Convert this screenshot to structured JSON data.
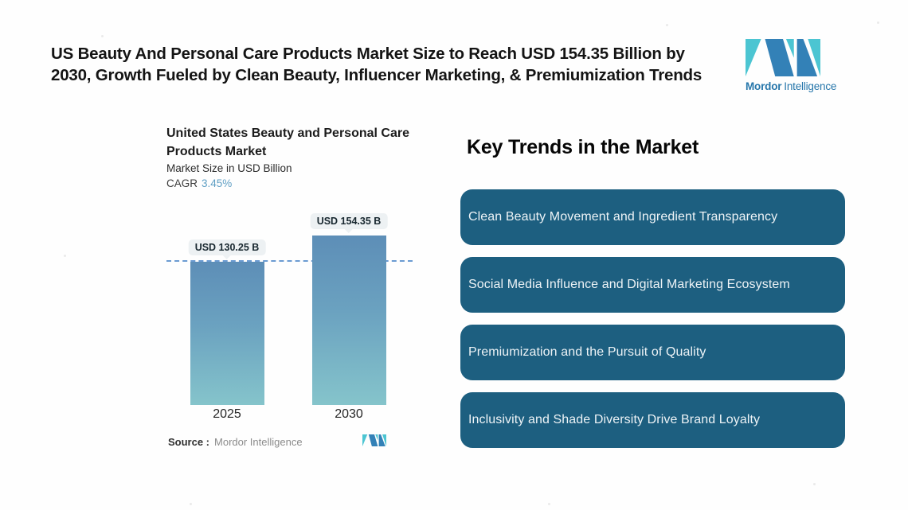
{
  "header": {
    "title_line1": "US Beauty And Personal Care Products Market Size to Reach USD 154.35 Billion by",
    "title_line2": "2030, Growth Fueled by Clean Beauty, Influencer Marketing, & Premiumization Trends"
  },
  "brand": {
    "name": "Mordor Intelligence",
    "wordmark_bold": "Mordor",
    "wordmark_light": "Intelligence",
    "logo_blue": "#3381b7",
    "logo_teal": "#4cc5d2",
    "wordmark_color": "#2777ab"
  },
  "chart": {
    "title_line1": "United States Beauty and Personal Care",
    "title_line2": "Products Market",
    "subtitle": "Market Size in USD Billion",
    "cagr_label": "CAGR",
    "cagr_value": "3.45%",
    "source_label": "Source :",
    "source_value": "Mordor Intelligence"
  },
  "chart_data": {
    "type": "bar",
    "title": "United States Beauty and Personal Care Products Market",
    "subtitle": "Market Size in USD Billion",
    "cagr": "3.45%",
    "unit": "USD Billion",
    "categories": [
      "2025",
      "2030"
    ],
    "values": [
      130.25,
      154.35
    ],
    "value_labels": [
      "USD 130.25 B",
      "USD 154.35 B"
    ],
    "ylim": [
      0,
      160
    ],
    "grid": "off",
    "legend": "none",
    "reference_line_at": 130.25,
    "reference_line_style": "dashed",
    "reference_line_color": "#6b9bd2",
    "bar_gradient_top": "#5d8eb7",
    "bar_gradient_bottom": "#85c4cb",
    "value_label_bg": "#edf1f3"
  },
  "trends": {
    "heading": "Key Trends in the Market",
    "card_color": "#1d5f80",
    "card_text_color": "#edf3f6",
    "items": [
      {
        "label": "Clean Beauty Movement and Ingredient Transparency"
      },
      {
        "label": "Social Media Influence and Digital Marketing Ecosystem"
      },
      {
        "label": "Premiumization and the Pursuit of Quality"
      },
      {
        "label": "Inclusivity and Shade Diversity Drive Brand Loyalty"
      }
    ]
  }
}
